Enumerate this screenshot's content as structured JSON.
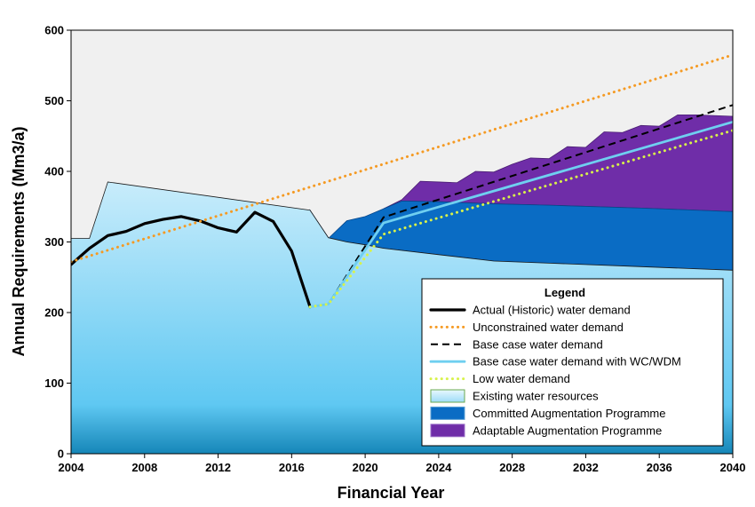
{
  "chart_data": {
    "type": "area",
    "title": "",
    "xlabel": "Financial Year",
    "ylabel": "Annual Requirements (Mm3/a)",
    "xlim": [
      2004,
      2040
    ],
    "ylim": [
      0,
      600
    ],
    "x_ticks": [
      "2004",
      "2008",
      "2012",
      "2016",
      "2020",
      "2024",
      "2028",
      "2032",
      "2036",
      "2040"
    ],
    "y_ticks": [
      "0",
      "100",
      "200",
      "300",
      "400",
      "500",
      "600"
    ],
    "grid": false,
    "legend_position": "bottom-right",
    "legend_title": "Legend",
    "colors": {
      "background": "#f0f0f0",
      "existing_top": "#c8ecfb",
      "existing_mid": "#5fc8f2",
      "existing_bottom": "#1586b8",
      "committed": "#0a6cc4",
      "adaptable": "#6f2da8",
      "actual": "#000000",
      "unconstrained": "#f59a23",
      "base_case": "#000000",
      "wcwdm": "#6fcff0",
      "low": "#d8f24a"
    },
    "areas": [
      {
        "name": "Existing water resources",
        "x": [
          2004,
          2005,
          2006,
          2017,
          2018,
          2019,
          2020,
          2021,
          2024,
          2027,
          2030,
          2035,
          2040
        ],
        "values": [
          305,
          305,
          385,
          345,
          306,
          300,
          296,
          291,
          282,
          273,
          270,
          265,
          260
        ]
      },
      {
        "name": "Committed Augmentation Programme",
        "x": [
          2017,
          2018,
          2019,
          2020,
          2021,
          2022,
          2024,
          2027,
          2030,
          2035,
          2040
        ],
        "values": [
          208,
          305,
          330,
          336,
          347,
          358,
          357,
          354,
          352,
          348,
          343
        ]
      },
      {
        "name": "Adaptable Augmentation Programme",
        "x": [
          2021,
          2022,
          2023,
          2024,
          2025,
          2026,
          2027,
          2028,
          2029,
          2030,
          2031,
          2032,
          2033,
          2034,
          2035,
          2036,
          2037,
          2038,
          2040
        ],
        "values": [
          347,
          360,
          386,
          385,
          384,
          400,
          399,
          410,
          419,
          418,
          435,
          434,
          456,
          455,
          465,
          464,
          480,
          480,
          478
        ]
      }
    ],
    "series": [
      {
        "name": "Actual (Historic) water demand",
        "style": "solid",
        "x": [
          2004,
          2005,
          2006,
          2007,
          2008,
          2009,
          2010,
          2011,
          2012,
          2013,
          2014,
          2015,
          2016,
          2017
        ],
        "values": [
          268,
          291,
          309,
          315,
          326,
          332,
          336,
          330,
          320,
          314,
          342,
          329,
          287,
          208
        ]
      },
      {
        "name": "Unconstrained water demand",
        "style": "dotted",
        "x": [
          2004,
          2040
        ],
        "values": [
          272,
          565
        ]
      },
      {
        "name": "Base case water demand",
        "style": "dashed",
        "x": [
          2017,
          2018,
          2021,
          2040
        ],
        "values": [
          208,
          212,
          335,
          494
        ]
      },
      {
        "name": "Base case water demand with WC/WDM",
        "style": "solid",
        "x": [
          2017,
          2018,
          2021,
          2040
        ],
        "values": [
          208,
          212,
          327,
          470
        ]
      },
      {
        "name": "Low water demand",
        "style": "dotted",
        "x": [
          2017,
          2018,
          2021,
          2040
        ],
        "values": [
          208,
          212,
          311,
          458
        ]
      }
    ]
  }
}
